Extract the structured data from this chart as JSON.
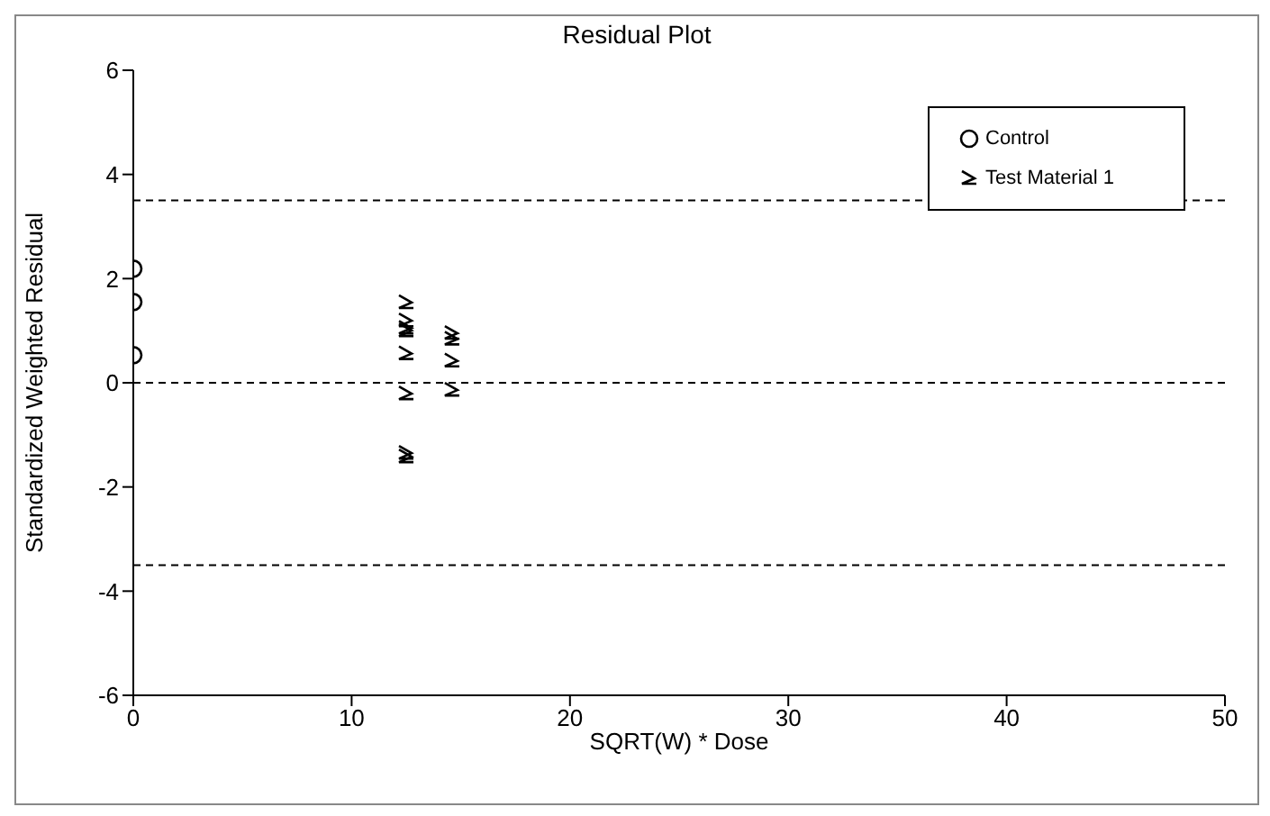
{
  "chart_data": {
    "type": "scatter",
    "title": "Residual Plot",
    "xlabel": "SQRT(W) * Dose",
    "ylabel": "Standardized Weighted Residual",
    "xlim": [
      0,
      50
    ],
    "xticks": [
      0,
      10,
      20,
      30,
      40,
      50
    ],
    "ylim": [
      -6,
      6
    ],
    "yticks": [
      -6,
      -4,
      -2,
      0,
      2,
      4,
      6
    ],
    "grid": false,
    "legend": "top right",
    "series": [
      {
        "name": "Control",
        "color": "#000000",
        "marker": "circle",
        "x": [
          0,
          0,
          0
        ],
        "values": [
          2.19,
          1.55,
          0.53
        ]
      },
      {
        "name": "Test Material 1",
        "color": "#000000",
        "x": [
          12.5,
          12.5,
          12.5,
          12.5,
          12.5,
          12.5,
          12.5,
          12.5,
          14.6,
          14.6,
          14.6,
          14.6
        ],
        "values": [
          1.54,
          1.19,
          1.05,
          1.0,
          0.56,
          -0.21,
          -1.35,
          -1.42,
          0.95,
          0.84,
          0.42,
          -0.14
        ]
      }
    ],
    "ref_lines": [
      {
        "axis": "y",
        "value": 3.5,
        "line_style": "dashed"
      },
      {
        "axis": "y",
        "value": 0,
        "line_style": "dashed"
      },
      {
        "axis": "y",
        "value": -3.5,
        "line_style": "dashed"
      }
    ]
  }
}
